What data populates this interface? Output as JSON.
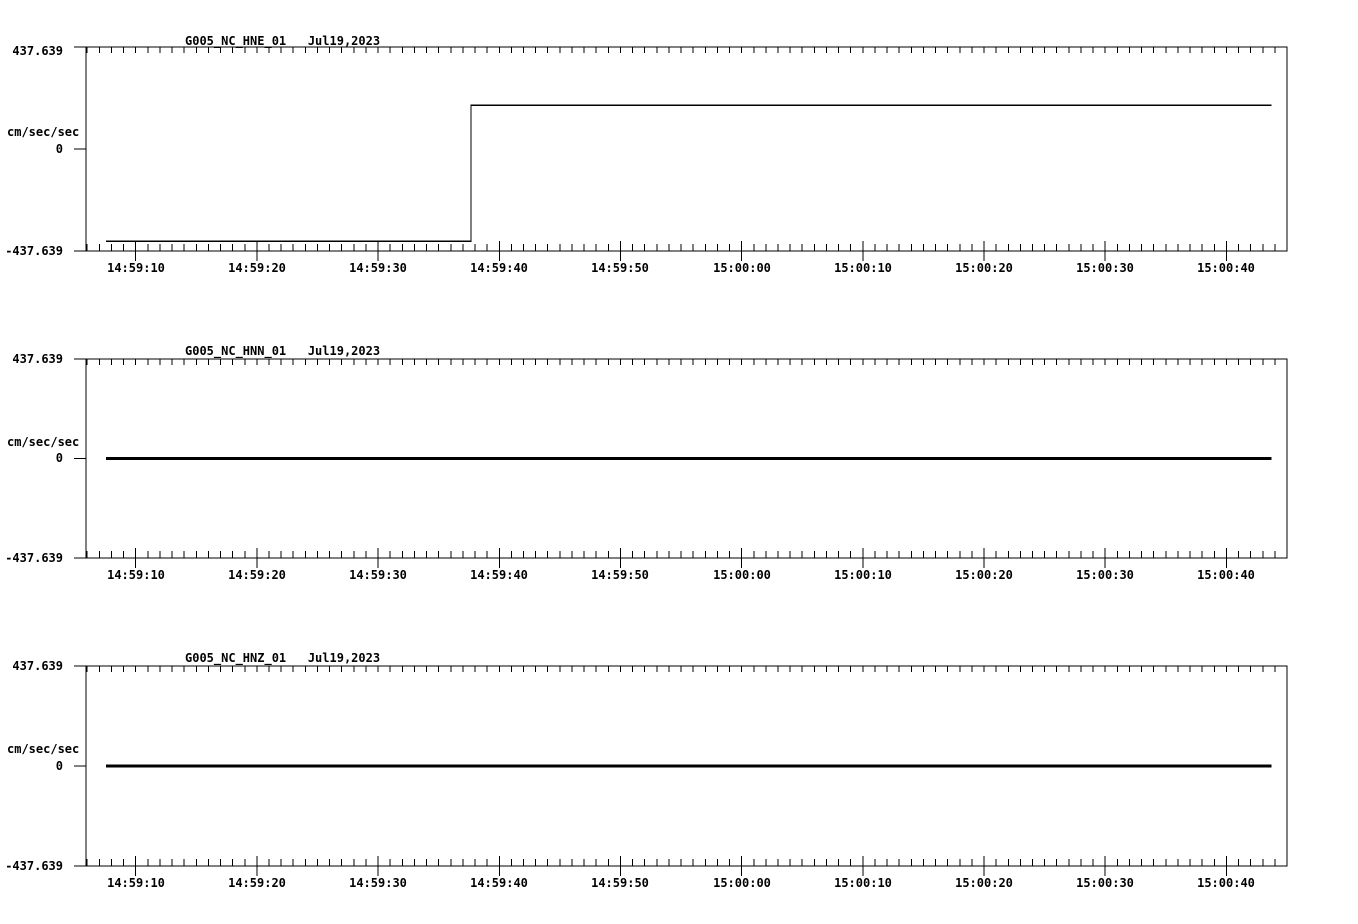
{
  "page": {
    "background": "#ffffff",
    "foreground": "#000000",
    "description": "Three-panel strong-motion seismograph record, station G005, network NC, channels HNE/HNN/HNZ, location 01, Jul 19 2023"
  },
  "chart_data": [
    {
      "type": "line",
      "title": "G005_NC_HNE_01   Jul19,2023",
      "station_channel": "G005_NC_HNE_01",
      "date": "Jul19,2023",
      "ylabel": "cm/sec/sec",
      "ylim": [
        -437.639,
        437.639
      ],
      "ytick_labels": [
        "437.639",
        "0",
        "-437.639"
      ],
      "xticks_s": [
        10,
        20,
        30,
        40,
        50,
        60,
        70,
        80,
        90,
        100
      ],
      "xtick_labels": [
        "14:59:10",
        "14:59:20",
        "14:59:30",
        "14:59:40",
        "14:59:50",
        "15:00:00",
        "15:00:10",
        "15:00:20",
        "15:00:30",
        "15:00:40"
      ],
      "x_start_s": 5.9,
      "x_end_s": 105.0,
      "minor_tick_s": 1,
      "points_t": [
        7.55,
        37.67,
        37.67,
        103.74
      ],
      "points_v": [
        -396,
        -396,
        188,
        188
      ],
      "line_width": 1.2,
      "annotation": "step from -396 to +188 cm/sec/sec at 14:59:37.7; trace spans 14:59:07.6 to 15:00:43.7"
    },
    {
      "type": "line",
      "title": "G005_NC_HNN_01   Jul19,2023",
      "station_channel": "G005_NC_HNN_01",
      "date": "Jul19,2023",
      "ylabel": "cm/sec/sec",
      "ylim": [
        -437.639,
        437.639
      ],
      "ytick_labels": [
        "437.639",
        "0",
        "-437.639"
      ],
      "xticks_s": [
        10,
        20,
        30,
        40,
        50,
        60,
        70,
        80,
        90,
        100
      ],
      "xtick_labels": [
        "14:59:10",
        "14:59:20",
        "14:59:30",
        "14:59:40",
        "14:59:50",
        "15:00:00",
        "15:00:10",
        "15:00:20",
        "15:00:30",
        "15:00:40"
      ],
      "x_start_s": 5.9,
      "x_end_s": 105.0,
      "minor_tick_s": 1,
      "points_t": [
        7.55,
        103.74
      ],
      "points_v": [
        0,
        0
      ],
      "line_width": 2.8,
      "annotation": "flat trace at 0 cm/sec/sec from 14:59:07.6 to 15:00:43.7"
    },
    {
      "type": "line",
      "title": "G005_NC_HNZ_01   Jul19,2023",
      "station_channel": "G005_NC_HNZ_01",
      "date": "Jul19,2023",
      "ylabel": "cm/sec/sec",
      "ylim": [
        -437.639,
        437.639
      ],
      "ytick_labels": [
        "437.639",
        "0",
        "-437.639"
      ],
      "xticks_s": [
        10,
        20,
        30,
        40,
        50,
        60,
        70,
        80,
        90,
        100
      ],
      "xtick_labels": [
        "14:59:10",
        "14:59:20",
        "14:59:30",
        "14:59:40",
        "14:59:50",
        "15:00:00",
        "15:00:10",
        "15:00:20",
        "15:00:30",
        "15:00:40"
      ],
      "x_start_s": 5.9,
      "x_end_s": 105.0,
      "minor_tick_s": 1,
      "points_t": [
        7.55,
        103.74
      ],
      "points_v": [
        0,
        0
      ],
      "line_width": 2.8,
      "annotation": "flat trace at 0 cm/sec/sec from 14:59:07.6 to 15:00:43.7"
    }
  ]
}
